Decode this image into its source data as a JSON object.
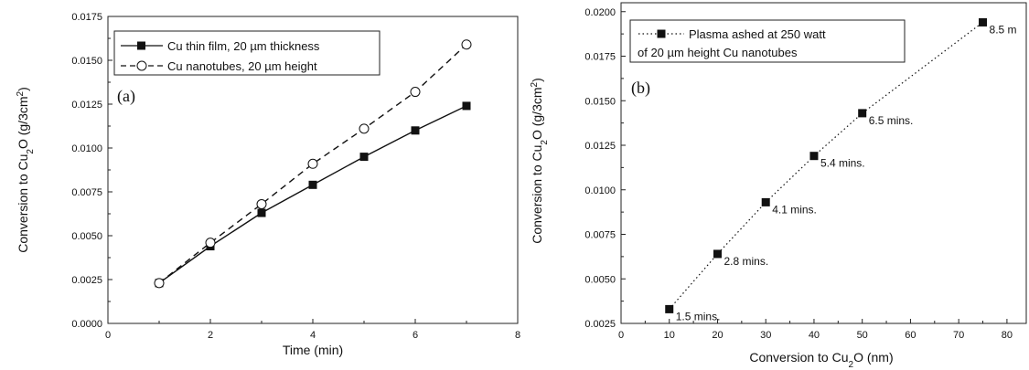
{
  "chart_data": [
    {
      "type": "line",
      "panel_label": "(a)",
      "xlabel": "Time (min)",
      "ylabel": {
        "text": "Conversion to Cu",
        "sub": "2",
        "text2": "O (g/3cm",
        "sup": "2",
        "text3": ")"
      },
      "xlim": [
        0,
        8
      ],
      "ylim": [
        0,
        0.0175
      ],
      "xticks": [
        0,
        2,
        4,
        6,
        8
      ],
      "xtick_labels": [
        "0",
        "2",
        "4",
        "6",
        "8"
      ],
      "yticks": [
        0,
        0.0025,
        0.005,
        0.0075,
        0.01,
        0.0125,
        0.015,
        0.0175
      ],
      "ytick_labels": [
        "0.0000",
        "0.0025",
        "0.0050",
        "0.0075",
        "0.0100",
        "0.0125",
        "0.0150",
        "0.0175"
      ],
      "legend_position": "top-left",
      "series": [
        {
          "name": "Cu thin film, 20 µm thickness",
          "marker": "filled-square",
          "line": "solid",
          "x": [
            1,
            2,
            3,
            4,
            5,
            6,
            7
          ],
          "y": [
            0.0023,
            0.0044,
            0.0063,
            0.0079,
            0.0095,
            0.011,
            0.0124
          ]
        },
        {
          "name": "Cu nanotubes, 20 µm height",
          "marker": "open-circle",
          "line": "dashed",
          "x": [
            1,
            2,
            3,
            4,
            5,
            6,
            7
          ],
          "y": [
            0.0023,
            0.0046,
            0.0068,
            0.0091,
            0.0111,
            0.0132,
            0.0159
          ]
        }
      ]
    },
    {
      "type": "scatter",
      "panel_label": "(b)",
      "xlabel": {
        "text": "Conversion to Cu",
        "sub": "2",
        "text2": "O (nm)"
      },
      "ylabel": {
        "text": "Conversion to Cu",
        "sub": "2",
        "text2": "O (g/3cm",
        "sup": "2",
        "text3": ")"
      },
      "xlim": [
        0,
        80
      ],
      "ylim": [
        0.0025,
        0.0205
      ],
      "xticks": [
        0,
        10,
        20,
        30,
        40,
        50,
        60,
        70,
        80
      ],
      "xtick_labels": [
        "0",
        "10",
        "20",
        "30",
        "40",
        "50",
        "60",
        "70",
        "80"
      ],
      "yticks": [
        0.0025,
        0.005,
        0.0075,
        0.01,
        0.0125,
        0.015,
        0.0175,
        0.02
      ],
      "ytick_labels": [
        "0.0025",
        "0.0050",
        "0.0075",
        "0.0100",
        "0.0125",
        "0.0150",
        "0.0175",
        "0.0200"
      ],
      "legend_position": "top-left",
      "series": [
        {
          "name_lines": [
            "Plasma ashed at 250 watt",
            "of 20 µm height Cu nanotubes"
          ],
          "marker": "filled-square",
          "line": "dotted",
          "x": [
            10,
            20,
            30,
            40,
            50,
            75
          ],
          "y": [
            0.0033,
            0.0064,
            0.0093,
            0.0119,
            0.0143,
            0.0194
          ],
          "labels": [
            "1.5 mins.",
            "2.8 mins.",
            "4.1 mins.",
            "5.4 mins.",
            "6.5 mins.",
            "8.5 m"
          ]
        }
      ]
    }
  ]
}
